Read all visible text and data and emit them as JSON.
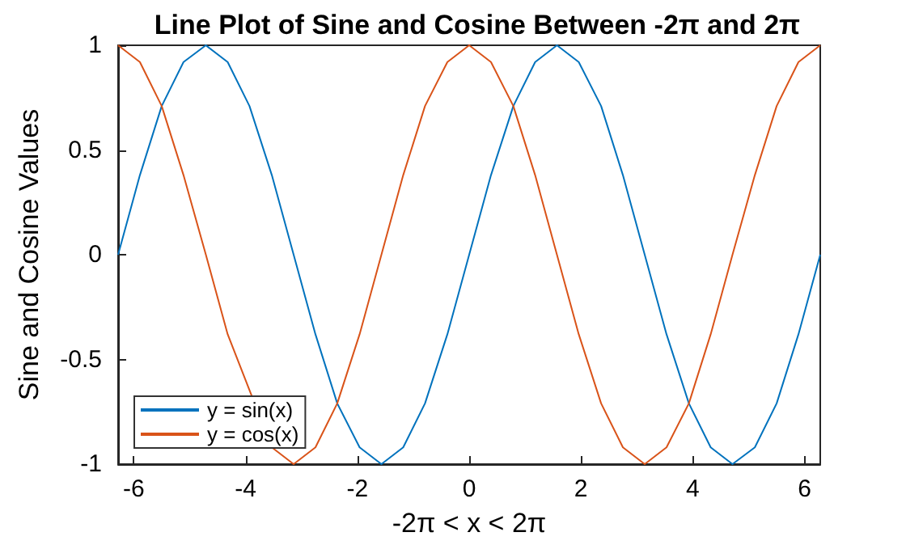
{
  "chart_data": {
    "type": "line",
    "title": "Line Plot of Sine and Cosine Between -2π and 2π",
    "xlabel": "-2π < x < 2π",
    "ylabel": "Sine and Cosine Values",
    "x": [
      -6.28,
      -5.89,
      -5.5,
      -5.11,
      -4.71,
      -4.32,
      -3.93,
      -3.53,
      -3.14,
      -2.75,
      -2.36,
      -1.96,
      -1.57,
      -1.18,
      -0.79,
      -0.39,
      0,
      0.39,
      0.79,
      1.18,
      1.57,
      1.96,
      2.36,
      2.75,
      3.14,
      3.53,
      3.93,
      4.32,
      4.71,
      5.11,
      5.5,
      5.89,
      6.28
    ],
    "series": [
      {
        "name": "y = sin(x)",
        "color": "#0072bd",
        "values": [
          0,
          0.38,
          0.71,
          0.92,
          1,
          0.92,
          0.71,
          0.38,
          0,
          -0.38,
          -0.71,
          -0.92,
          -1,
          -0.92,
          -0.71,
          -0.38,
          0,
          0.38,
          0.71,
          0.92,
          1,
          0.92,
          0.71,
          0.38,
          0,
          -0.38,
          -0.71,
          -0.92,
          -1,
          -0.92,
          -0.71,
          -0.38,
          0
        ]
      },
      {
        "name": "y = cos(x)",
        "color": "#d95319",
        "values": [
          1,
          0.92,
          0.71,
          0.38,
          0,
          -0.38,
          null,
          -0.92,
          -1,
          -0.92,
          -0.71,
          -0.38,
          0,
          0.38,
          0.71,
          0.92,
          1,
          0.92,
          0.71,
          0.38,
          0,
          -0.38,
          -0.71,
          -0.92,
          -1,
          -0.92,
          -0.71,
          -0.38,
          0,
          0.38,
          0.71,
          0.92,
          1
        ]
      }
    ],
    "xlim": [
      -6.28,
      6.28
    ],
    "xticks": [
      -6,
      -4,
      -2,
      0,
      2,
      4,
      6
    ],
    "ylim": [
      -1,
      1
    ],
    "yticks": [
      -1,
      -0.5,
      0,
      0.5,
      1
    ],
    "grid": false,
    "legend": "bottom left",
    "marker": "none",
    "line_style": "solid"
  }
}
